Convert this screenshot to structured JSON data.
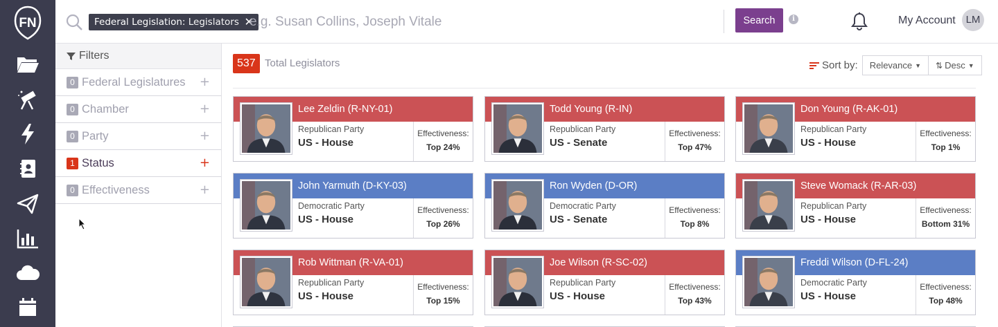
{
  "logo": {
    "text": "FN"
  },
  "sidebar": {
    "items": [
      {
        "icon": "folder-icon"
      },
      {
        "icon": "telescope-icon"
      },
      {
        "icon": "lightning-icon"
      },
      {
        "icon": "contacts-book-icon"
      },
      {
        "icon": "paper-plane-icon"
      },
      {
        "icon": "bar-chart-icon"
      },
      {
        "icon": "cloud-icon"
      },
      {
        "icon": "calendar-icon"
      }
    ]
  },
  "header": {
    "chip_category": "Federal Legislation:",
    "chip_value": "Legislators",
    "search_placeholder": "e.g. Susan Collins, Joseph Vitale",
    "search_value": "",
    "search_button": "Search",
    "info_icon_text": "i",
    "account_label": "My Account",
    "avatar_initials": "LM"
  },
  "filters": {
    "title": "Filters",
    "facets": [
      {
        "count": "0",
        "label": "Federal Legislatures"
      },
      {
        "count": "0",
        "label": "Chamber"
      },
      {
        "count": "0",
        "label": "Party"
      },
      {
        "count": "1",
        "label": "Status"
      },
      {
        "count": "0",
        "label": "Effectiveness"
      }
    ],
    "expand_symbol": "+"
  },
  "results": {
    "total_count": "537",
    "total_label": "Total Legislators",
    "sort_label": "Sort by:",
    "sort_field": "Relevance",
    "sort_order": "Desc"
  },
  "colors": {
    "republican": "#cb5255",
    "democrat": "#5b7ec5",
    "accent": "#7b3f8e",
    "badge": "#d9351a",
    "rail": "#3b3c4e"
  },
  "cards": [
    {
      "name": "Lee Zeldin (R-NY-01)",
      "party": "Republican Party",
      "chamber": "US - House",
      "eff_label": "Effectiveness:",
      "eff_value": "Top 24%",
      "affiliation": "rep"
    },
    {
      "name": "Todd Young (R-IN)",
      "party": "Republican Party",
      "chamber": "US - Senate",
      "eff_label": "Effectiveness:",
      "eff_value": "Top 47%",
      "affiliation": "rep"
    },
    {
      "name": "Don Young (R-AK-01)",
      "party": "Republican Party",
      "chamber": "US - House",
      "eff_label": "Effectiveness:",
      "eff_value": "Top 1%",
      "affiliation": "rep"
    },
    {
      "name": "John Yarmuth (D-KY-03)",
      "party": "Democratic Party",
      "chamber": "US - House",
      "eff_label": "Effectiveness:",
      "eff_value": "Top 26%",
      "affiliation": "dem"
    },
    {
      "name": "Ron Wyden (D-OR)",
      "party": "Democratic Party",
      "chamber": "US - Senate",
      "eff_label": "Effectiveness:",
      "eff_value": "Top 8%",
      "affiliation": "dem"
    },
    {
      "name": "Steve Womack (R-AR-03)",
      "party": "Republican Party",
      "chamber": "US - House",
      "eff_label": "Effectiveness:",
      "eff_value": "Bottom 31%",
      "affiliation": "rep"
    },
    {
      "name": "Rob Wittman (R-VA-01)",
      "party": "Republican Party",
      "chamber": "US - House",
      "eff_label": "Effectiveness:",
      "eff_value": "Top 15%",
      "affiliation": "rep"
    },
    {
      "name": "Joe Wilson (R-SC-02)",
      "party": "Republican Party",
      "chamber": "US - House",
      "eff_label": "Effectiveness:",
      "eff_value": "Top 43%",
      "affiliation": "rep"
    },
    {
      "name": "Freddi Wilson (D-FL-24)",
      "party": "Democratic Party",
      "chamber": "US - House",
      "eff_label": "Effectiveness:",
      "eff_value": "Top 48%",
      "affiliation": "dem"
    }
  ]
}
